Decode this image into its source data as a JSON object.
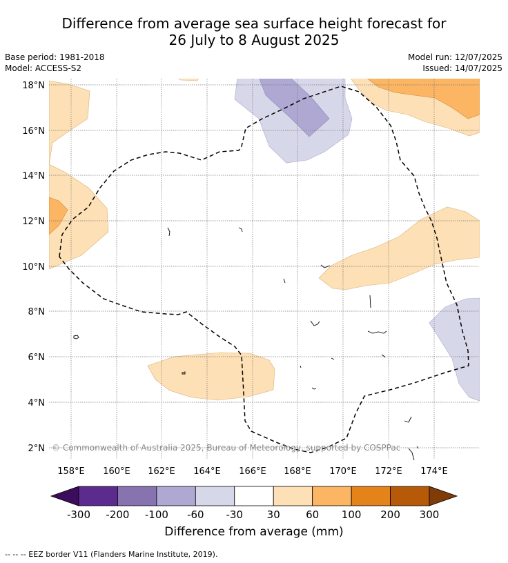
{
  "title": {
    "line1": "Difference from average sea surface height forecast for",
    "line2": "26 July to 8 August 2025"
  },
  "meta": {
    "base_period": "Base period: 1981-2018",
    "model": "Model: ACCESS-S2",
    "model_run": "Model run: 12/07/2025",
    "issued": "Issued: 14/07/2025"
  },
  "axes": {
    "lat_labels": [
      "18°N",
      "16°N",
      "14°N",
      "12°N",
      "10°N",
      "8°N",
      "6°N",
      "4°N",
      "2°N"
    ],
    "lon_labels": [
      "158°E",
      "160°E",
      "162°E",
      "164°E",
      "166°E",
      "168°E",
      "170°E",
      "172°E",
      "174°E"
    ]
  },
  "copyright": "© Commonwealth of Australia 2025, Bureau of Meteorology, supported by COSPPac",
  "colorbar": {
    "labels": [
      "-300",
      "-200",
      "-100",
      "-60",
      "-30",
      "30",
      "60",
      "100",
      "200",
      "300"
    ],
    "colors": [
      "#3c0d5c",
      "#5b2b8e",
      "#8673b0",
      "#aea8d2",
      "#d7d7ea",
      "#ffffff",
      "#fde0b5",
      "#fbb563",
      "#e4831a",
      "#b65a0a",
      "#7f3b08"
    ],
    "title": "Difference from average (mm)"
  },
  "legend_note": "-- -- -- EEZ border V11 (Flanders Marine Institute, 2019)."
}
